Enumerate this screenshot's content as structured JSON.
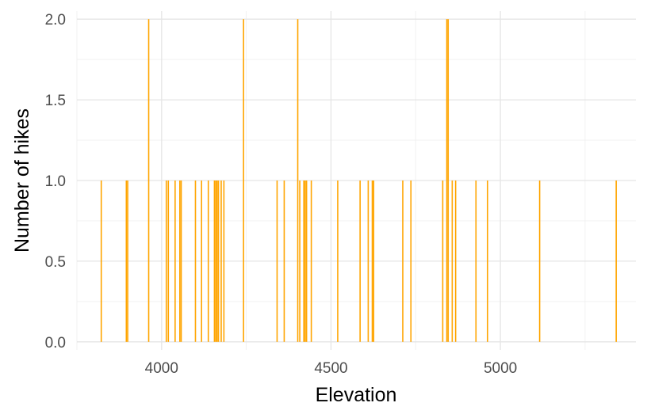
{
  "chart_data": {
    "type": "bar",
    "xlabel": "Elevation",
    "ylabel": "Number of hikes",
    "xlim": [
      3750,
      5400
    ],
    "ylim": [
      -0.05,
      2.05
    ],
    "x_ticks": [
      4000,
      4500,
      5000
    ],
    "x_tick_labels": [
      "4000",
      "4500",
      "5000"
    ],
    "y_ticks": [
      0,
      0.5,
      1,
      1.5,
      2
    ],
    "y_tick_labels": [
      "0.0",
      "0.5",
      "1.0",
      "1.5",
      "2.0"
    ],
    "grid": true,
    "bar_color": "#FFA500",
    "x": [
      3821,
      3895,
      3899,
      3961,
      4013,
      4019,
      4039,
      4053,
      4057,
      4099,
      4117,
      4137,
      4155,
      4159,
      4163,
      4167,
      4175,
      4183,
      4241,
      4340,
      4361,
      4401,
      4407,
      4419,
      4423,
      4427,
      4441,
      4519,
      4585,
      4609,
      4621,
      4625,
      4711,
      4735,
      4829,
      4841,
      4845,
      4857,
      4867,
      4927,
      4961,
      5115,
      5341
    ],
    "values": [
      1,
      1,
      1,
      2,
      1,
      1,
      1,
      1,
      1,
      1,
      1,
      1,
      1,
      1,
      1,
      1,
      1,
      1,
      2,
      1,
      1,
      2,
      1,
      1,
      1,
      1,
      1,
      1,
      1,
      1,
      1,
      1,
      1,
      1,
      1,
      2,
      2,
      1,
      1,
      1,
      1,
      1,
      1
    ]
  }
}
